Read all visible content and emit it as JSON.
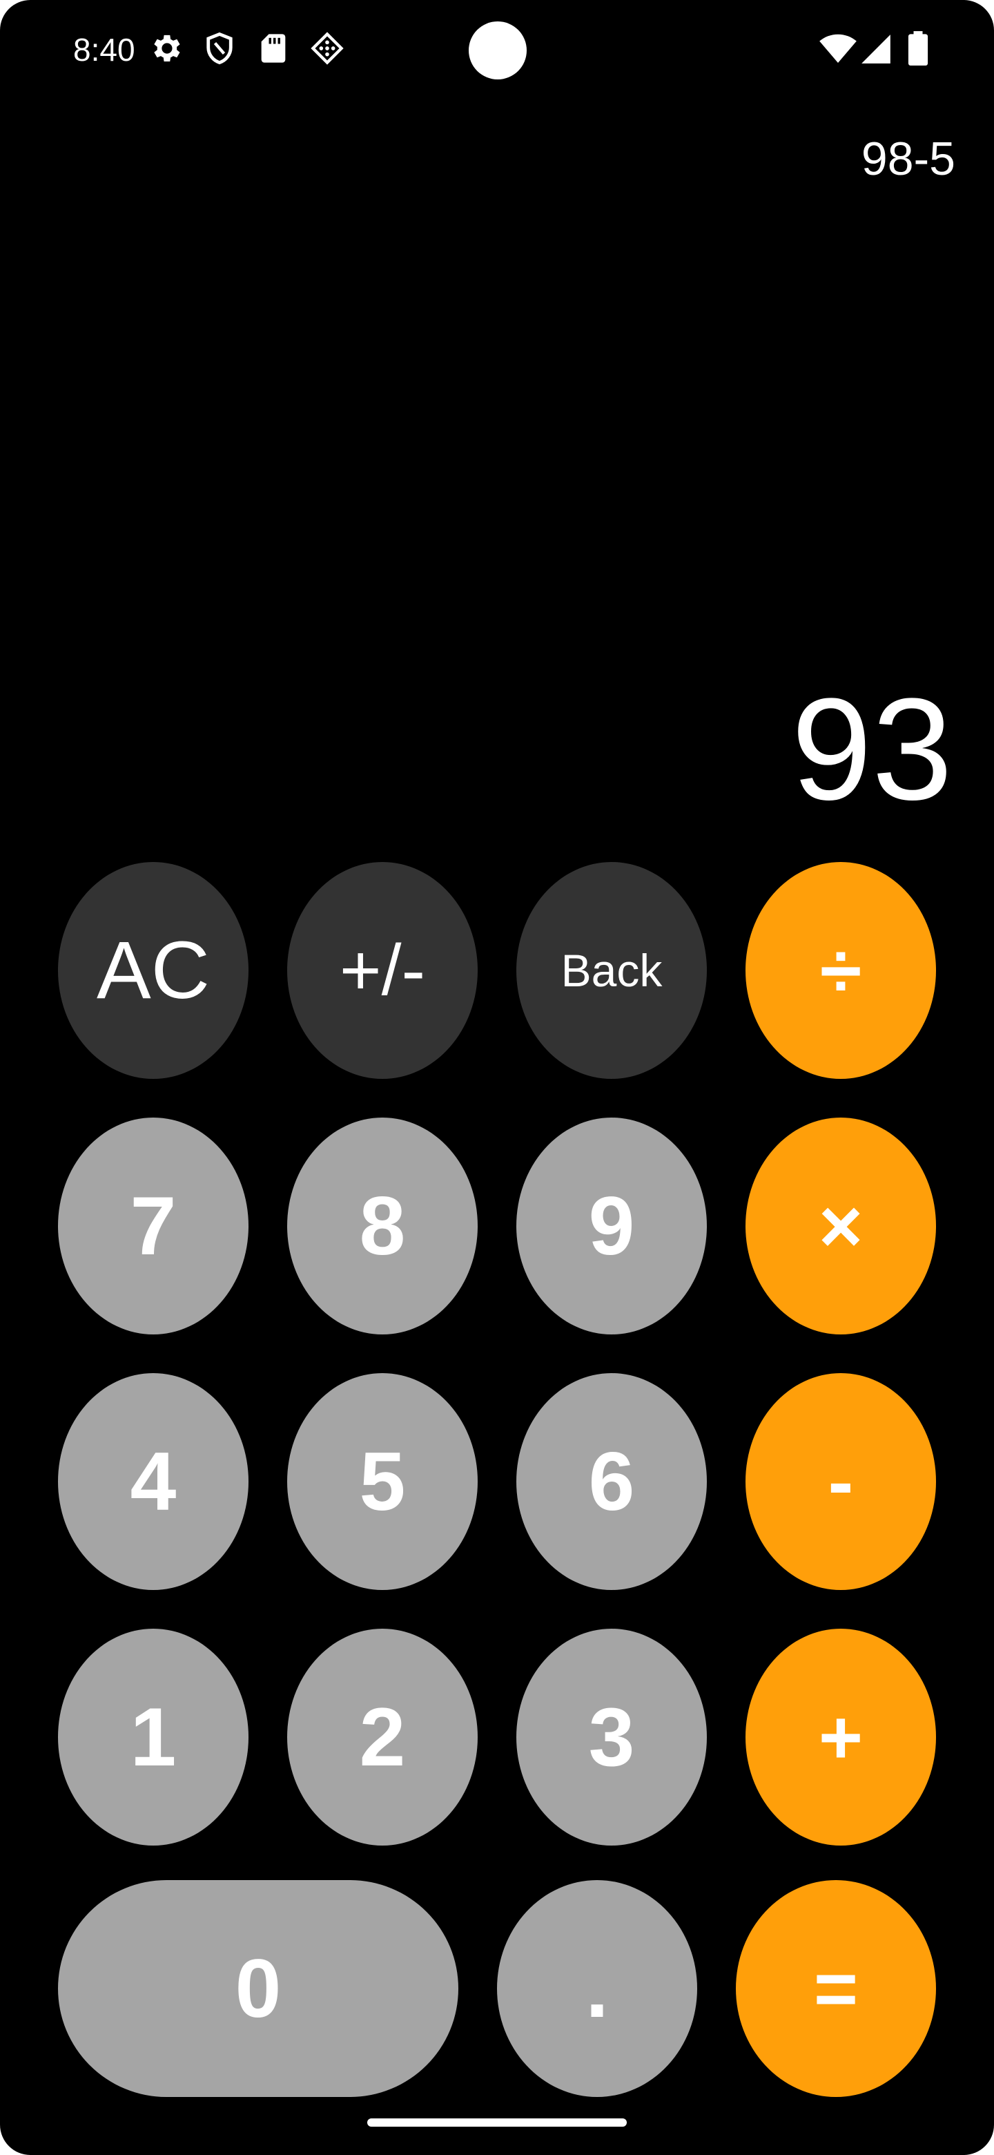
{
  "status_bar": {
    "time": "8:40",
    "icons_left": [
      "gear-icon",
      "shield-icon",
      "sd-card-icon",
      "diamond-grid-icon"
    ],
    "icons_right": [
      "wifi-icon",
      "signal-icon",
      "battery-icon"
    ]
  },
  "display": {
    "expression": "98-5",
    "result": "93"
  },
  "keypad": {
    "ac": "AC",
    "plus_minus": "+/-",
    "back": "Back",
    "divide": "÷",
    "seven": "7",
    "eight": "8",
    "nine": "9",
    "multiply": "×",
    "four": "4",
    "five": "5",
    "six": "6",
    "minus": "-",
    "one": "1",
    "two": "2",
    "three": "3",
    "plus": "+",
    "zero": "0",
    "decimal": ".",
    "equals": "="
  },
  "colors": {
    "background": "#000000",
    "function_key": "#333333",
    "number_key": "#a5a5a5",
    "operator_key": "#ff9f0a",
    "text": "#ffffff"
  }
}
